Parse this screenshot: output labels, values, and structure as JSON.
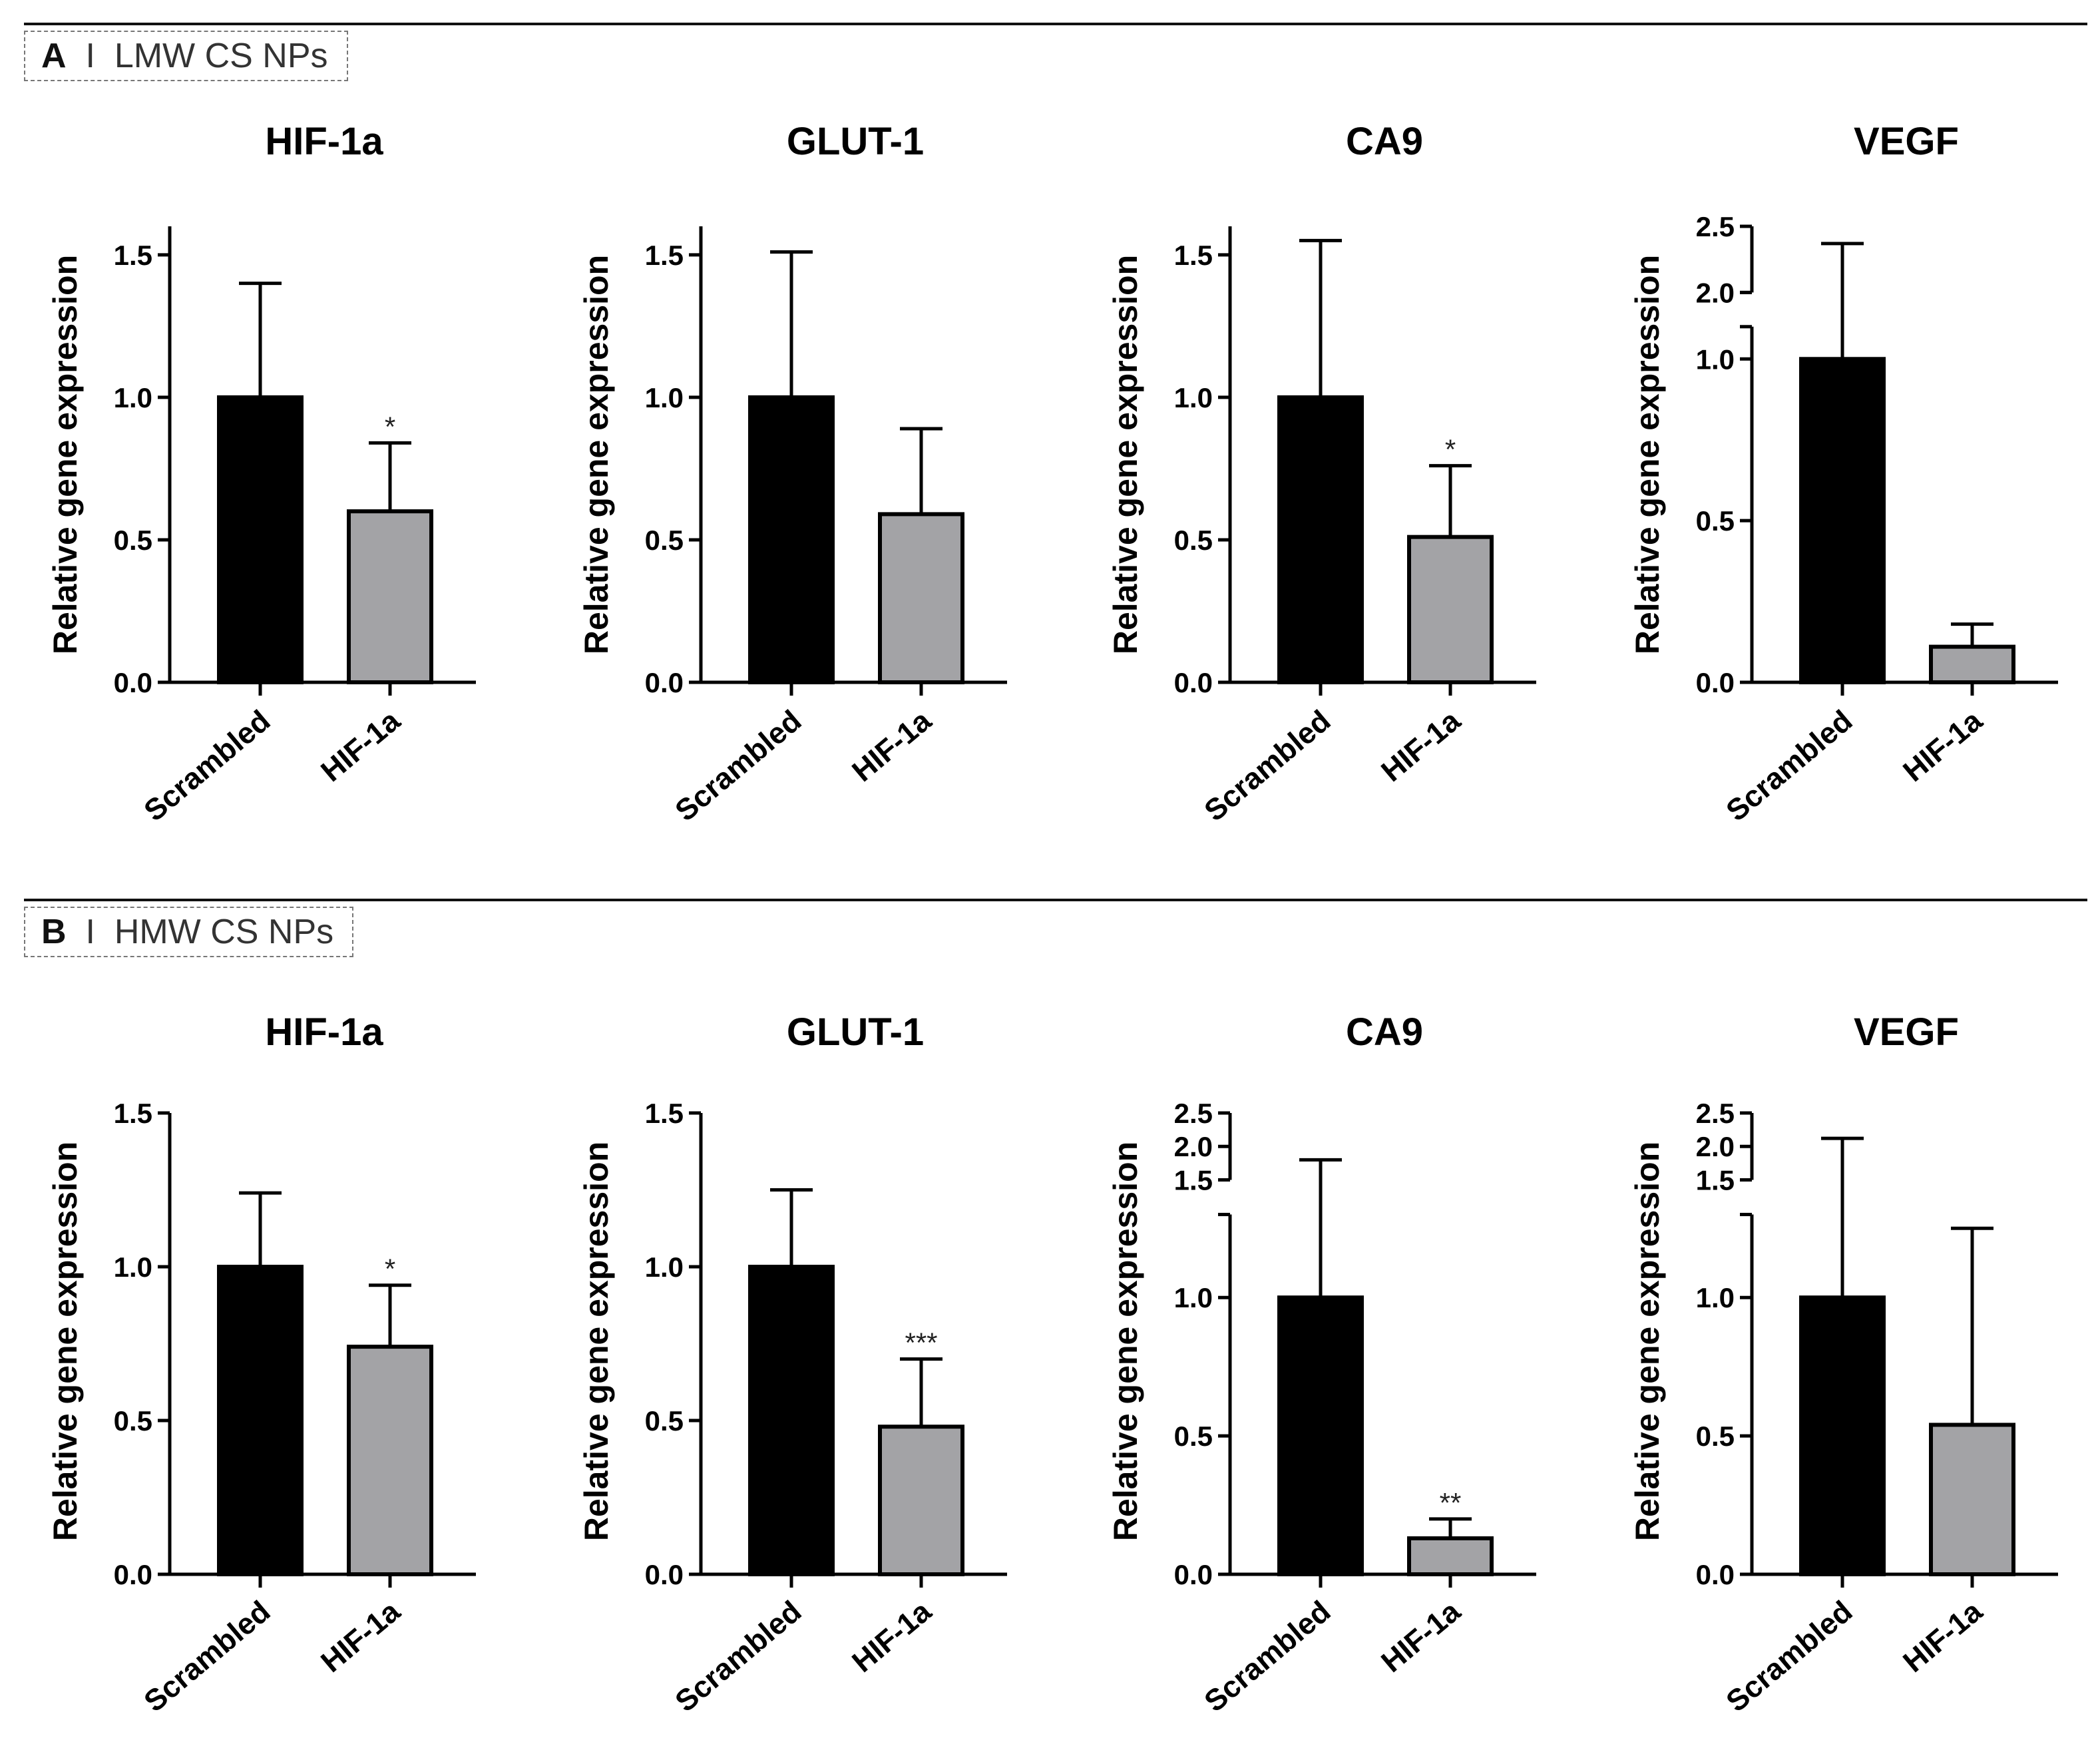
{
  "panels": [
    {
      "letter": "A",
      "title": "LMW CS NPs"
    },
    {
      "letter": "B",
      "title": "HMW CS NPs"
    }
  ],
  "colors": {
    "scrambled": "#000000",
    "hif": "#a3a3a6",
    "axis": "#000000"
  },
  "chart_data": [
    {
      "type": "bar",
      "panel": "A",
      "title": "HIF-1a",
      "ylabel": "Relative gene expression",
      "categories": [
        "Scrambled",
        "HIF-1a"
      ],
      "values": [
        1.0,
        0.6
      ],
      "errors": [
        0.4,
        0.24
      ],
      "significance": [
        "",
        "*"
      ],
      "ylim": [
        0,
        1.6
      ],
      "yticks": [
        0.0,
        0.5,
        1.0,
        1.5
      ],
      "ytick_labels": [
        "0.0",
        "0.5",
        "1.0",
        "1.5"
      ]
    },
    {
      "type": "bar",
      "panel": "A",
      "title": "GLUT-1",
      "ylabel": "Relative gene expression",
      "categories": [
        "Scrambled",
        "HIF-1a"
      ],
      "values": [
        1.0,
        0.59
      ],
      "errors": [
        0.51,
        0.3
      ],
      "significance": [
        "",
        ""
      ],
      "ylim": [
        0,
        1.6
      ],
      "yticks": [
        0.0,
        0.5,
        1.0,
        1.5
      ],
      "ytick_labels": [
        "0.0",
        "0.5",
        "1.0",
        "1.5"
      ]
    },
    {
      "type": "bar",
      "panel": "A",
      "title": "CA9",
      "ylabel": "Relative gene expression",
      "categories": [
        "Scrambled",
        "HIF-1a"
      ],
      "values": [
        1.0,
        0.51
      ],
      "errors": [
        0.55,
        0.25
      ],
      "significance": [
        "",
        "*"
      ],
      "ylim": [
        0,
        1.6
      ],
      "yticks": [
        0.0,
        0.5,
        1.0,
        1.5
      ],
      "ytick_labels": [
        "0.0",
        "0.5",
        "1.0",
        "1.5"
      ]
    },
    {
      "type": "bar",
      "panel": "A",
      "title": "VEGF",
      "ylabel": "Relative gene expression",
      "categories": [
        "Scrambled",
        "HIF-1a"
      ],
      "values": [
        1.0,
        0.11
      ],
      "errors": [
        1.37,
        0.07
      ],
      "significance": [
        "",
        ""
      ],
      "ylim": [
        0,
        2.5
      ],
      "axis_break": [
        1.1,
        2.0
      ],
      "yticks": [
        0.0,
        0.5,
        1.0,
        2.0,
        2.5
      ],
      "ytick_labels": [
        "0.0",
        "0.5",
        "1.0",
        "2.0",
        "2.5"
      ]
    },
    {
      "type": "bar",
      "panel": "B",
      "title": "HIF-1a",
      "ylabel": "Relative gene expression",
      "categories": [
        "Scrambled",
        "HIF-1a"
      ],
      "values": [
        1.0,
        0.74
      ],
      "errors": [
        0.24,
        0.2
      ],
      "significance": [
        "",
        "*"
      ],
      "ylim": [
        0,
        1.5
      ],
      "yticks": [
        0.0,
        0.5,
        1.0,
        1.5
      ],
      "ytick_labels": [
        "0.0",
        "0.5",
        "1.0",
        "1.5"
      ]
    },
    {
      "type": "bar",
      "panel": "B",
      "title": "GLUT-1",
      "ylabel": "Relative gene expression",
      "categories": [
        "Scrambled",
        "HIF-1a"
      ],
      "values": [
        1.0,
        0.48
      ],
      "errors": [
        0.25,
        0.22
      ],
      "significance": [
        "",
        "***"
      ],
      "ylim": [
        0,
        1.5
      ],
      "yticks": [
        0.0,
        0.5,
        1.0,
        1.5
      ],
      "ytick_labels": [
        "0.0",
        "0.5",
        "1.0",
        "1.5"
      ]
    },
    {
      "type": "bar",
      "panel": "B",
      "title": "CA9",
      "ylabel": "Relative gene expression",
      "categories": [
        "Scrambled",
        "HIF-1a"
      ],
      "values": [
        1.0,
        0.13
      ],
      "errors": [
        0.8,
        0.07
      ],
      "significance": [
        "",
        "**"
      ],
      "ylim": [
        0,
        2.5
      ],
      "axis_break": [
        1.3,
        1.5
      ],
      "yticks": [
        0.0,
        0.5,
        1.0,
        1.5,
        2.0,
        2.5
      ],
      "ytick_labels": [
        "0.0",
        "0.5",
        "1.0",
        "1.5",
        "2.0",
        "2.5"
      ]
    },
    {
      "type": "bar",
      "panel": "B",
      "title": "VEGF",
      "ylabel": "Relative gene expression",
      "categories": [
        "Scrambled",
        "HIF-1a"
      ],
      "values": [
        1.0,
        0.54
      ],
      "errors": [
        1.12,
        0.71
      ],
      "significance": [
        "",
        ""
      ],
      "ylim": [
        0,
        2.5
      ],
      "axis_break": [
        1.3,
        1.5
      ],
      "yticks": [
        0.0,
        0.5,
        1.0,
        1.5,
        2.0,
        2.5
      ],
      "ytick_labels": [
        "0.0",
        "0.5",
        "1.0",
        "1.5",
        "2.0",
        "2.5"
      ]
    }
  ]
}
